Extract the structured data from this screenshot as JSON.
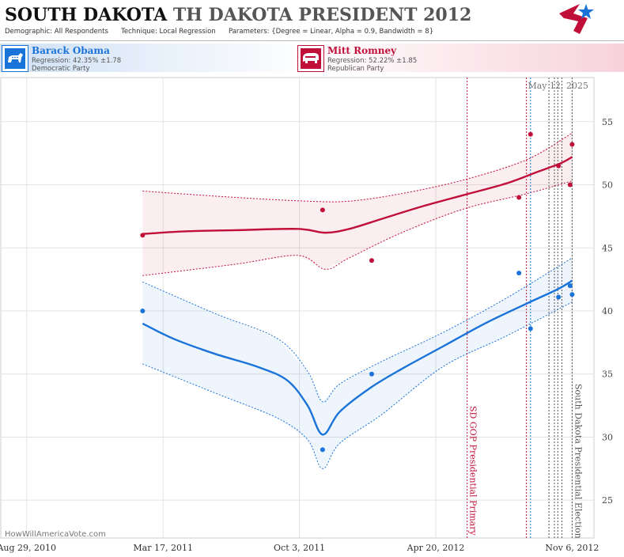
{
  "header": {
    "state": "SOUTH DAKOTA",
    "race": "TH DAKOTA PRESIDENT 2012",
    "demographic_label": "Demographic:",
    "demographic_value": "All Respondents",
    "technique_label": "Technique:",
    "technique_value": "Local Regression",
    "parameters_label": "Parameters:",
    "parameters_value": "{Degree = Linear, Alpha = 0.9, Bandwidth = 8}"
  },
  "candidates": {
    "dem": {
      "name": "Barack Obama",
      "regression": "Regression: 42.35% ±1.78",
      "party": "Democratic Party"
    },
    "rep": {
      "name": "Mitt Romney",
      "regression": "Regression: 52.22% ±1.85",
      "party": "Republican Party"
    }
  },
  "footer": {
    "source": "HowWillAmericaVote.com"
  },
  "colors": {
    "dem": "#1a73d9",
    "rep": "#c0103a",
    "grid": "#e2e2e2"
  },
  "chart_data": {
    "type": "line",
    "date_label": "May 12, 2025",
    "ylim": [
      22,
      58.5
    ],
    "xlim": [
      "2010-07-22",
      "2012-12-08"
    ],
    "yticks": [
      25,
      30,
      35,
      40,
      45,
      50,
      55
    ],
    "xticks": [
      {
        "date": "2010-08-29",
        "label": "Aug 29, 2010"
      },
      {
        "date": "2011-03-17",
        "label": "Mar 17, 2011"
      },
      {
        "date": "2011-10-03",
        "label": "Oct 3, 2011"
      },
      {
        "date": "2012-04-20",
        "label": "Apr 20, 2012"
      },
      {
        "date": "2012-11-06",
        "label": "Nov 6, 2012"
      }
    ],
    "events": [
      {
        "date": "2012-06-05",
        "label": "SD GOP Presidential Primary",
        "color": "#c0103a"
      },
      {
        "date": "2012-11-06",
        "label": "South Dakota Presidential Election",
        "color": "#555555"
      }
    ],
    "extra_event_lines": [
      {
        "date": "2012-08-31",
        "color": "#c0103a"
      },
      {
        "date": "2012-09-06",
        "color": "#1a73d9"
      },
      {
        "date": "2012-10-03",
        "color": "#555555"
      },
      {
        "date": "2012-10-11",
        "color": "#555555"
      },
      {
        "date": "2012-10-16",
        "color": "#555555"
      },
      {
        "date": "2012-10-22",
        "color": "#555555"
      }
    ],
    "series": [
      {
        "name": "Mitt Romney",
        "color": "#c0103a",
        "points": [
          {
            "x": "2011-02-15",
            "y": 46
          },
          {
            "x": "2011-11-06",
            "y": 48
          },
          {
            "x": "2012-01-17",
            "y": 44
          },
          {
            "x": "2012-08-20",
            "y": 49
          },
          {
            "x": "2012-09-06",
            "y": 54
          },
          {
            "x": "2012-10-17",
            "y": 51.5
          },
          {
            "x": "2012-11-03",
            "y": 50
          },
          {
            "x": "2012-11-06",
            "y": 53.2
          }
        ],
        "trend": [
          {
            "x": "2011-02-15",
            "y": 46.1
          },
          {
            "x": "2011-04-15",
            "y": 46.3
          },
          {
            "x": "2011-07-01",
            "y": 46.4
          },
          {
            "x": "2011-10-01",
            "y": 46.5
          },
          {
            "x": "2011-11-10",
            "y": 46.2
          },
          {
            "x": "2011-12-15",
            "y": 46.5
          },
          {
            "x": "2012-02-01",
            "y": 47.3
          },
          {
            "x": "2012-04-01",
            "y": 48.3
          },
          {
            "x": "2012-06-01",
            "y": 49.2
          },
          {
            "x": "2012-08-01",
            "y": 50.1
          },
          {
            "x": "2012-09-15",
            "y": 51.0
          },
          {
            "x": "2012-10-20",
            "y": 51.7
          },
          {
            "x": "2012-11-06",
            "y": 52.2
          }
        ],
        "upper": [
          {
            "x": "2011-02-15",
            "y": 49.5
          },
          {
            "x": "2011-07-01",
            "y": 49.0
          },
          {
            "x": "2011-10-15",
            "y": 48.7
          },
          {
            "x": "2011-12-15",
            "y": 48.7
          },
          {
            "x": "2012-03-01",
            "y": 49.3
          },
          {
            "x": "2012-06-01",
            "y": 50.4
          },
          {
            "x": "2012-09-01",
            "y": 52.0
          },
          {
            "x": "2012-11-06",
            "y": 54.1
          }
        ],
        "lower": [
          {
            "x": "2011-02-15",
            "y": 42.8
          },
          {
            "x": "2011-07-01",
            "y": 43.7
          },
          {
            "x": "2011-10-01",
            "y": 44.4
          },
          {
            "x": "2011-11-10",
            "y": 43.3
          },
          {
            "x": "2011-12-15",
            "y": 44.2
          },
          {
            "x": "2012-03-01",
            "y": 46.2
          },
          {
            "x": "2012-06-01",
            "y": 48.1
          },
          {
            "x": "2012-09-01",
            "y": 49.3
          },
          {
            "x": "2012-11-06",
            "y": 50.3
          }
        ]
      },
      {
        "name": "Barack Obama",
        "color": "#1a73d9",
        "points": [
          {
            "x": "2011-02-15",
            "y": 40
          },
          {
            "x": "2011-11-06",
            "y": 29
          },
          {
            "x": "2012-01-17",
            "y": 35
          },
          {
            "x": "2012-08-20",
            "y": 43
          },
          {
            "x": "2012-09-06",
            "y": 38.6
          },
          {
            "x": "2012-10-17",
            "y": 41.1
          },
          {
            "x": "2012-11-03",
            "y": 42
          },
          {
            "x": "2012-11-06",
            "y": 41.3
          }
        ],
        "trend": [
          {
            "x": "2011-02-15",
            "y": 39.0
          },
          {
            "x": "2011-04-01",
            "y": 37.8
          },
          {
            "x": "2011-06-01",
            "y": 36.6
          },
          {
            "x": "2011-08-01",
            "y": 35.6
          },
          {
            "x": "2011-09-15",
            "y": 34.5
          },
          {
            "x": "2011-10-15",
            "y": 32.5
          },
          {
            "x": "2011-11-06",
            "y": 30.2
          },
          {
            "x": "2011-12-01",
            "y": 32.0
          },
          {
            "x": "2012-01-15",
            "y": 33.9
          },
          {
            "x": "2012-03-01",
            "y": 35.4
          },
          {
            "x": "2012-05-01",
            "y": 37.2
          },
          {
            "x": "2012-07-01",
            "y": 39.0
          },
          {
            "x": "2012-09-01",
            "y": 40.6
          },
          {
            "x": "2012-10-15",
            "y": 41.7
          },
          {
            "x": "2012-11-06",
            "y": 42.4
          }
        ],
        "upper": [
          {
            "x": "2011-02-15",
            "y": 42.3
          },
          {
            "x": "2011-06-01",
            "y": 39.8
          },
          {
            "x": "2011-09-01",
            "y": 37.8
          },
          {
            "x": "2011-10-15",
            "y": 35.2
          },
          {
            "x": "2011-11-06",
            "y": 32.8
          },
          {
            "x": "2011-12-01",
            "y": 34.2
          },
          {
            "x": "2012-02-01",
            "y": 36.0
          },
          {
            "x": "2012-05-01",
            "y": 38.3
          },
          {
            "x": "2012-08-01",
            "y": 41.0
          },
          {
            "x": "2012-11-06",
            "y": 44.2
          }
        ],
        "lower": [
          {
            "x": "2011-02-15",
            "y": 35.8
          },
          {
            "x": "2011-06-01",
            "y": 33.5
          },
          {
            "x": "2011-09-01",
            "y": 31.5
          },
          {
            "x": "2011-10-15",
            "y": 29.8
          },
          {
            "x": "2011-11-06",
            "y": 27.5
          },
          {
            "x": "2011-12-01",
            "y": 29.5
          },
          {
            "x": "2012-02-01",
            "y": 31.8
          },
          {
            "x": "2012-05-01",
            "y": 35.6
          },
          {
            "x": "2012-08-01",
            "y": 38.0
          },
          {
            "x": "2012-11-06",
            "y": 40.7
          }
        ]
      }
    ]
  }
}
